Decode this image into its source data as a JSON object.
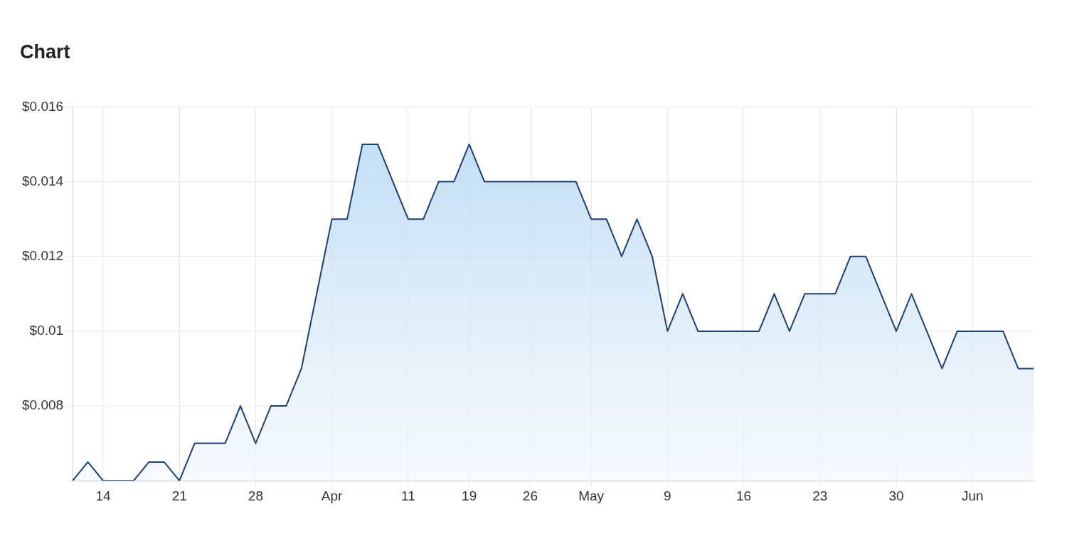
{
  "chart_data": {
    "type": "area",
    "title": "Chart",
    "categories": [
      null,
      null,
      "14",
      null,
      null,
      null,
      null,
      "21",
      null,
      null,
      null,
      null,
      "28",
      null,
      null,
      null,
      null,
      "Apr",
      null,
      null,
      null,
      null,
      "11",
      null,
      null,
      null,
      "19",
      null,
      null,
      null,
      "26",
      null,
      null,
      null,
      "May",
      null,
      null,
      null,
      null,
      "9",
      null,
      null,
      null,
      null,
      "16",
      null,
      null,
      null,
      null,
      "23",
      null,
      null,
      null,
      null,
      "30",
      null,
      null,
      null,
      null,
      "Jun",
      null,
      null,
      null,
      null
    ],
    "series": [
      {
        "color": "#1c3f74",
        "values": [
          0.006,
          0.0065,
          0.006,
          0.006,
          0.006,
          0.0065,
          0.0065,
          0.006,
          0.007,
          0.007,
          0.007,
          0.008,
          0.007,
          0.008,
          0.008,
          0.009,
          0.011,
          0.013,
          0.013,
          0.015,
          0.015,
          0.014,
          0.013,
          0.013,
          0.014,
          0.014,
          0.015,
          0.014,
          0.014,
          0.014,
          0.014,
          0.014,
          0.014,
          0.014,
          0.013,
          0.013,
          0.012,
          0.013,
          0.012,
          0.01,
          0.011,
          0.01,
          0.01,
          0.01,
          0.01,
          0.01,
          0.011,
          0.01,
          0.011,
          0.011,
          0.011,
          0.012,
          0.012,
          0.011,
          0.01,
          0.011,
          0.01,
          0.009,
          0.01,
          0.01,
          0.01,
          0.01,
          0.009,
          0.009
        ]
      }
    ],
    "ylim": [
      0.006,
      0.016
    ],
    "yticks": [
      {
        "value": 0.006,
        "label": null
      },
      {
        "value": 0.008,
        "label": "$0.008"
      },
      {
        "value": 0.01,
        "label": "$0.01"
      },
      {
        "value": 0.012,
        "label": "$0.012"
      },
      {
        "value": 0.014,
        "label": "$0.014"
      },
      {
        "value": 0.016,
        "label": "$0.016"
      }
    ],
    "grid": true,
    "marker": "none",
    "line_style": "solid"
  }
}
